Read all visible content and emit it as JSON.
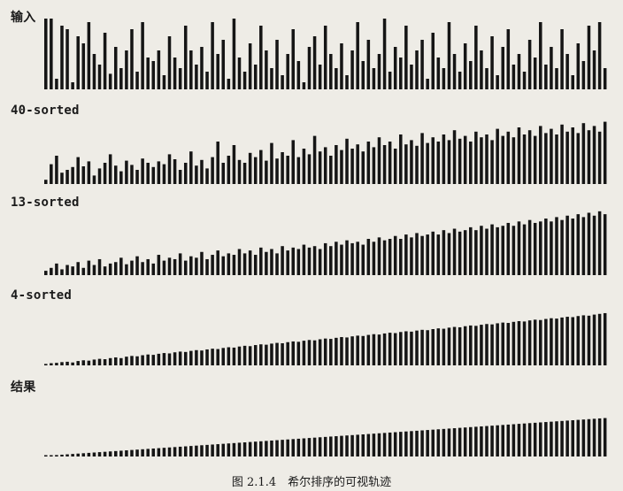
{
  "chart_data": {
    "type": "bar",
    "caption": "图 2.1.4　希尔排序的可视轨迹",
    "bar_count": 105,
    "panels": [
      {
        "label": "输入",
        "values": [
          1.0,
          1.0,
          0.15,
          0.9,
          0.85,
          0.1,
          0.75,
          0.65,
          0.95,
          0.5,
          0.35,
          0.8,
          0.22,
          0.6,
          0.3,
          0.55,
          0.85,
          0.25,
          0.95,
          0.45,
          0.4,
          0.55,
          0.2,
          0.75,
          0.45,
          0.3,
          0.9,
          0.55,
          0.35,
          0.6,
          0.25,
          0.95,
          0.5,
          0.7,
          0.15,
          1.0,
          0.45,
          0.25,
          0.65,
          0.35,
          0.9,
          0.55,
          0.3,
          0.7,
          0.2,
          0.5,
          0.85,
          0.4,
          0.1,
          0.6,
          0.75,
          0.35,
          0.9,
          0.5,
          0.3,
          0.65,
          0.2,
          0.55,
          0.95,
          0.4,
          0.7,
          0.3,
          0.5,
          1.0,
          0.25,
          0.6,
          0.45,
          0.9,
          0.35,
          0.55,
          0.7,
          0.15,
          0.8,
          0.45,
          0.3,
          0.95,
          0.5,
          0.25,
          0.65,
          0.4,
          0.9,
          0.55,
          0.3,
          0.75,
          0.2,
          0.6,
          0.85,
          0.35,
          0.5,
          0.25,
          0.7,
          0.45,
          0.95,
          0.35,
          0.6,
          0.3,
          0.85,
          0.5,
          0.2,
          0.65,
          0.4,
          0.9,
          0.55,
          0.95,
          0.3
        ]
      },
      {
        "label": "40-sorted",
        "values": [
          0.06,
          0.28,
          0.4,
          0.16,
          0.2,
          0.24,
          0.38,
          0.25,
          0.32,
          0.12,
          0.22,
          0.3,
          0.42,
          0.26,
          0.18,
          0.33,
          0.27,
          0.2,
          0.36,
          0.3,
          0.24,
          0.32,
          0.28,
          0.42,
          0.35,
          0.2,
          0.3,
          0.46,
          0.26,
          0.34,
          0.22,
          0.38,
          0.6,
          0.3,
          0.4,
          0.55,
          0.34,
          0.3,
          0.44,
          0.38,
          0.48,
          0.33,
          0.58,
          0.36,
          0.45,
          0.4,
          0.62,
          0.38,
          0.5,
          0.42,
          0.68,
          0.46,
          0.52,
          0.4,
          0.55,
          0.48,
          0.64,
          0.5,
          0.56,
          0.46,
          0.6,
          0.52,
          0.66,
          0.55,
          0.6,
          0.5,
          0.7,
          0.56,
          0.62,
          0.54,
          0.72,
          0.58,
          0.66,
          0.6,
          0.7,
          0.62,
          0.76,
          0.64,
          0.68,
          0.6,
          0.74,
          0.66,
          0.7,
          0.62,
          0.78,
          0.68,
          0.74,
          0.66,
          0.8,
          0.7,
          0.76,
          0.68,
          0.82,
          0.72,
          0.78,
          0.7,
          0.84,
          0.74,
          0.8,
          0.72,
          0.86,
          0.76,
          0.82,
          0.74,
          0.88
        ]
      },
      {
        "label": "13-sorted",
        "values": [
          0.06,
          0.1,
          0.16,
          0.08,
          0.14,
          0.12,
          0.18,
          0.1,
          0.2,
          0.14,
          0.22,
          0.12,
          0.16,
          0.18,
          0.24,
          0.15,
          0.2,
          0.26,
          0.18,
          0.22,
          0.16,
          0.28,
          0.2,
          0.24,
          0.22,
          0.3,
          0.2,
          0.26,
          0.24,
          0.32,
          0.22,
          0.28,
          0.34,
          0.26,
          0.3,
          0.28,
          0.36,
          0.3,
          0.34,
          0.28,
          0.38,
          0.32,
          0.36,
          0.3,
          0.4,
          0.34,
          0.38,
          0.36,
          0.42,
          0.38,
          0.4,
          0.36,
          0.44,
          0.4,
          0.46,
          0.42,
          0.48,
          0.44,
          0.46,
          0.42,
          0.5,
          0.46,
          0.52,
          0.48,
          0.5,
          0.54,
          0.5,
          0.56,
          0.52,
          0.58,
          0.54,
          0.56,
          0.6,
          0.56,
          0.62,
          0.58,
          0.64,
          0.6,
          0.62,
          0.66,
          0.62,
          0.68,
          0.64,
          0.7,
          0.66,
          0.68,
          0.72,
          0.68,
          0.74,
          0.7,
          0.76,
          0.72,
          0.74,
          0.78,
          0.74,
          0.8,
          0.76,
          0.82,
          0.78,
          0.84,
          0.8,
          0.86,
          0.82,
          0.88,
          0.84
        ]
      },
      {
        "label": "4-sorted",
        "values": [
          0.02,
          0.03,
          0.035,
          0.045,
          0.05,
          0.04,
          0.06,
          0.07,
          0.065,
          0.08,
          0.09,
          0.085,
          0.1,
          0.11,
          0.1,
          0.12,
          0.13,
          0.125,
          0.14,
          0.15,
          0.145,
          0.16,
          0.17,
          0.165,
          0.18,
          0.19,
          0.185,
          0.2,
          0.21,
          0.205,
          0.22,
          0.23,
          0.225,
          0.24,
          0.25,
          0.245,
          0.26,
          0.27,
          0.265,
          0.28,
          0.29,
          0.285,
          0.3,
          0.31,
          0.305,
          0.32,
          0.33,
          0.325,
          0.34,
          0.35,
          0.345,
          0.36,
          0.37,
          0.365,
          0.38,
          0.39,
          0.385,
          0.4,
          0.41,
          0.405,
          0.42,
          0.43,
          0.425,
          0.44,
          0.45,
          0.445,
          0.46,
          0.47,
          0.465,
          0.48,
          0.49,
          0.485,
          0.5,
          0.51,
          0.505,
          0.52,
          0.53,
          0.525,
          0.54,
          0.55,
          0.545,
          0.56,
          0.57,
          0.565,
          0.58,
          0.59,
          0.585,
          0.6,
          0.61,
          0.605,
          0.62,
          0.63,
          0.625,
          0.64,
          0.65,
          0.645,
          0.66,
          0.67,
          0.665,
          0.68,
          0.69,
          0.685,
          0.7,
          0.71,
          0.72
        ]
      },
      {
        "label": "结果",
        "values": [
          0.01,
          0.015,
          0.02,
          0.025,
          0.03,
          0.035,
          0.04,
          0.045,
          0.05,
          0.055,
          0.06,
          0.065,
          0.07,
          0.075,
          0.08,
          0.085,
          0.09,
          0.095,
          0.1,
          0.105,
          0.11,
          0.115,
          0.12,
          0.125,
          0.13,
          0.135,
          0.14,
          0.145,
          0.15,
          0.155,
          0.16,
          0.165,
          0.17,
          0.175,
          0.18,
          0.185,
          0.19,
          0.195,
          0.2,
          0.205,
          0.21,
          0.215,
          0.22,
          0.225,
          0.23,
          0.235,
          0.24,
          0.245,
          0.25,
          0.255,
          0.26,
          0.265,
          0.27,
          0.275,
          0.28,
          0.285,
          0.29,
          0.295,
          0.3,
          0.305,
          0.31,
          0.315,
          0.32,
          0.325,
          0.33,
          0.335,
          0.34,
          0.345,
          0.35,
          0.355,
          0.36,
          0.365,
          0.37,
          0.375,
          0.38,
          0.385,
          0.39,
          0.395,
          0.4,
          0.405,
          0.41,
          0.415,
          0.42,
          0.425,
          0.43,
          0.435,
          0.44,
          0.445,
          0.45,
          0.455,
          0.46,
          0.465,
          0.47,
          0.475,
          0.48,
          0.485,
          0.49,
          0.495,
          0.5,
          0.505,
          0.51,
          0.515,
          0.52,
          0.525,
          0.53
        ]
      }
    ]
  }
}
